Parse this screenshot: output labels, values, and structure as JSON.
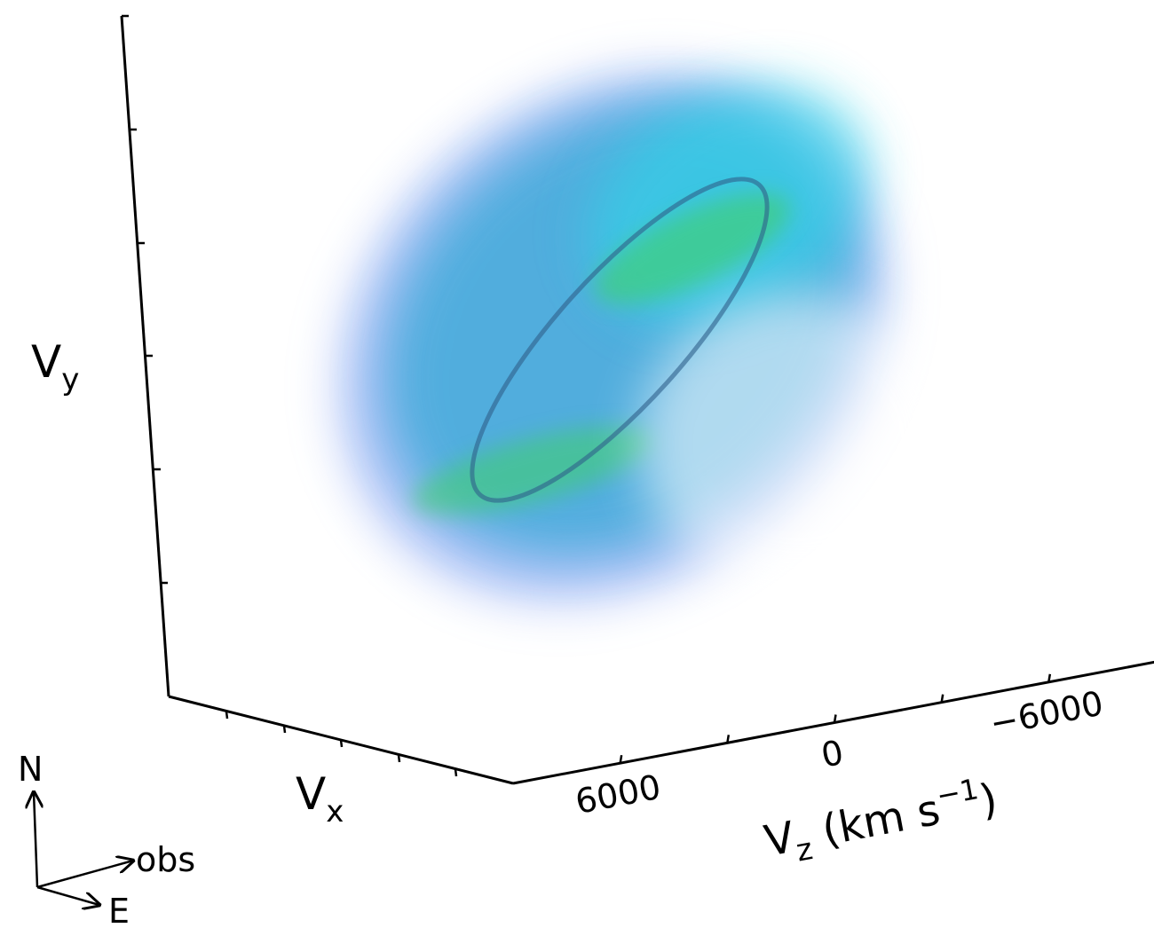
{
  "chart_data": {
    "type": "volume",
    "xlabel": [
      "V",
      "x"
    ],
    "ylabel": [
      "V",
      "y"
    ],
    "zlabel": [
      "V",
      "z",
      " (km s",
      "−1",
      ")"
    ],
    "zlim": [
      9000,
      -9000
    ],
    "zticks": [
      6000,
      0,
      {
        "value": -6000,
        "label": "−6000"
      }
    ],
    "zminorticks": [
      3000,
      -3000
    ],
    "compass": {
      "north": "N",
      "east": "E",
      "observer": "obs"
    }
  }
}
